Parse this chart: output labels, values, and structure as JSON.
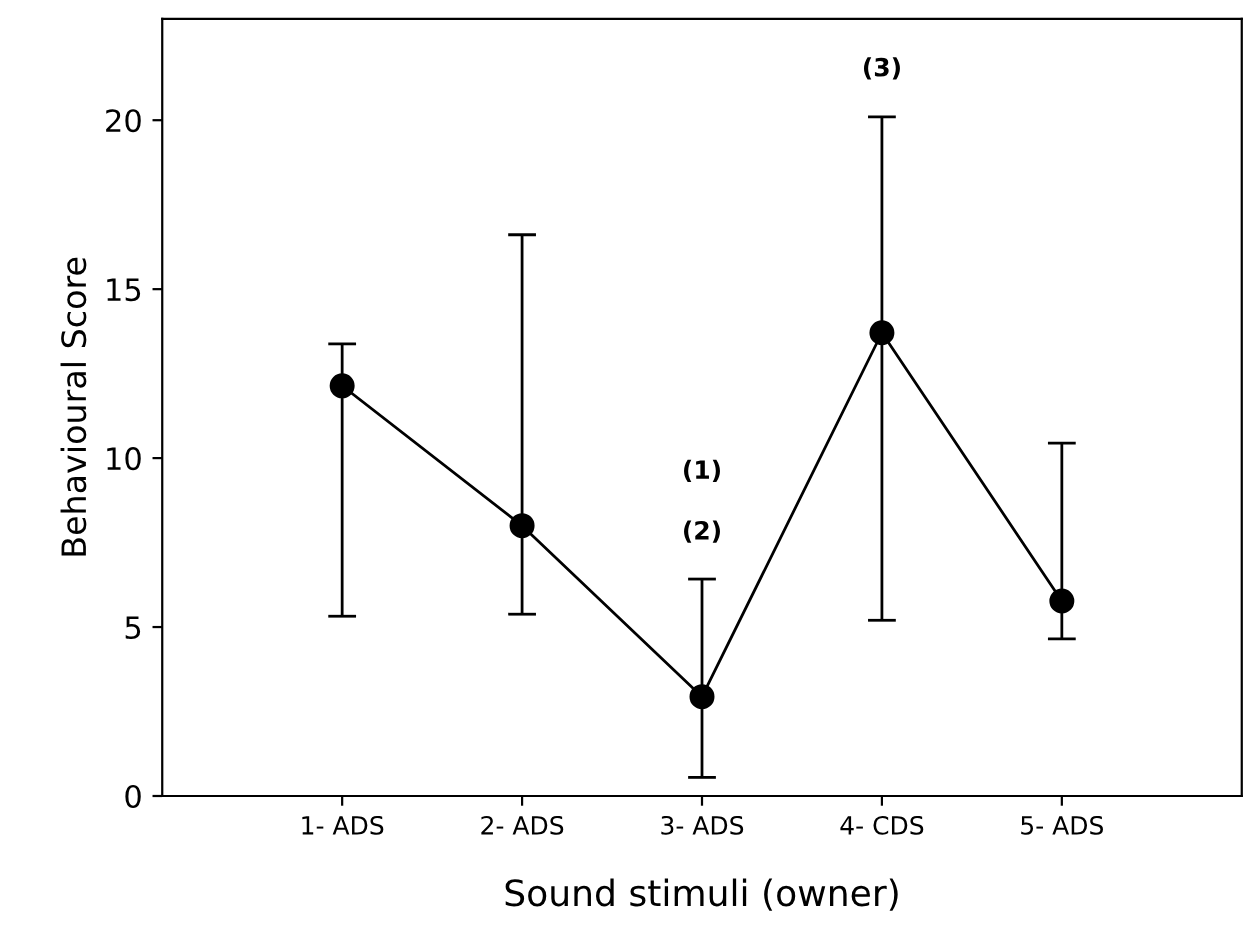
{
  "chart_data": {
    "type": "line",
    "xlabel": "Sound stimuli (owner)",
    "ylabel": "Behavioural Score",
    "categories": [
      "1- ADS",
      "2- ADS",
      "3- ADS",
      "4- CDS",
      "5- ADS"
    ],
    "series": [
      {
        "color": "#000000",
        "values": [
          12.14,
          8.0,
          2.94,
          13.71,
          5.77
        ],
        "errors": [
          [
            5.32,
            13.38
          ],
          [
            5.38,
            16.61
          ],
          [
            0.55,
            6.42
          ],
          [
            5.2,
            20.1
          ],
          [
            4.65,
            10.44
          ]
        ]
      }
    ],
    "ylim": [
      0,
      23
    ],
    "yticks": [
      0,
      5,
      10,
      15,
      20
    ],
    "grid": false,
    "legend": false,
    "marker": "circle",
    "line_style": "solid",
    "annotations": [
      "(1)",
      "(2)",
      "(3)"
    ]
  }
}
